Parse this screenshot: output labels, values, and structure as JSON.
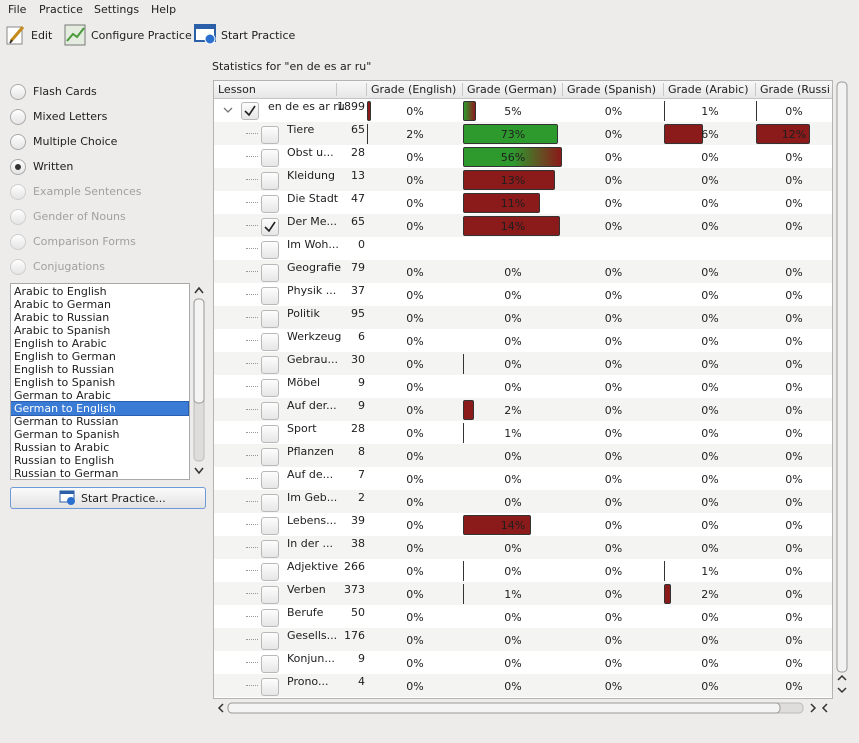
{
  "menu": [
    "File",
    "Practice",
    "Settings",
    "Help"
  ],
  "toolbar": [
    "Edit",
    "Configure Practice",
    "Start Practice"
  ],
  "modes": [
    {
      "label": "Flash Cards",
      "enabled": true,
      "selected": false
    },
    {
      "label": "Mixed Letters",
      "enabled": true,
      "selected": false
    },
    {
      "label": "Multiple Choice",
      "enabled": true,
      "selected": false
    },
    {
      "label": "Written",
      "enabled": true,
      "selected": true
    },
    {
      "label": "Example Sentences",
      "enabled": false,
      "selected": false
    },
    {
      "label": "Gender of Nouns",
      "enabled": false,
      "selected": false
    },
    {
      "label": "Comparison Forms",
      "enabled": false,
      "selected": false
    },
    {
      "label": "Conjugations",
      "enabled": false,
      "selected": false
    }
  ],
  "directions": [
    {
      "label": "Arabic to English",
      "selected": false
    },
    {
      "label": "Arabic to German",
      "selected": false
    },
    {
      "label": "Arabic to Russian",
      "selected": false
    },
    {
      "label": "Arabic to Spanish",
      "selected": false
    },
    {
      "label": "English to Arabic",
      "selected": false
    },
    {
      "label": "English to German",
      "selected": false
    },
    {
      "label": "English to Russian",
      "selected": false
    },
    {
      "label": "English to Spanish",
      "selected": false
    },
    {
      "label": "German to Arabic",
      "selected": false
    },
    {
      "label": "German to English",
      "selected": true
    },
    {
      "label": "German to Russian",
      "selected": false
    },
    {
      "label": "German to Spanish",
      "selected": false
    },
    {
      "label": "Russian to Arabic",
      "selected": false
    },
    {
      "label": "Russian to English",
      "selected": false
    },
    {
      "label": "Russian to German",
      "selected": false
    }
  ],
  "start_button": "Start Practice...",
  "stats_title": "Statistics for \"en de es ar ru\"",
  "table": {
    "headers": [
      "Lesson",
      "Grade (English)",
      "Grade (German)",
      "Grade (Spanish)",
      "Grade (Arabic)",
      "Grade (Russian)"
    ],
    "rows": [
      {
        "level": 0,
        "name": "en de es ar ru",
        "count": "1899",
        "checked": true,
        "grades": [
          "0%",
          "5%",
          "0%",
          "1%",
          "0%"
        ],
        "bars": [
          {
            "percent": 3,
            "colors": [
              "#8b1a1a"
            ]
          },
          {
            "percent": 12,
            "colors": [
              "#2e9a2e",
              "#8b1a1a"
            ]
          },
          null,
          {
            "percent": 1,
            "colors": [
              "#8b1a1a"
            ]
          },
          {
            "percent": 1,
            "colors": [
              "#8b1a1a"
            ]
          }
        ]
      },
      {
        "level": 1,
        "name": "Tiere",
        "count": "65",
        "checked": false,
        "grades": [
          "2%",
          "73%",
          "0%",
          "6%",
          "12%"
        ],
        "bars": [
          {
            "percent": 1,
            "colors": [
              "#8b1a1a"
            ]
          },
          {
            "percent": 96,
            "colors": [
              "#2e9a2e"
            ]
          },
          null,
          {
            "percent": 42,
            "colors": [
              "#8b1a1a"
            ]
          },
          {
            "percent": 72,
            "colors": [
              "#8b1a1a"
            ]
          }
        ]
      },
      {
        "level": 1,
        "name": "Obst u...",
        "count": "28",
        "checked": false,
        "grades": [
          "0%",
          "56%",
          "0%",
          "0%",
          "0%"
        ],
        "bars": [
          null,
          {
            "percent": 100,
            "colors": [
              "#2e9a2e",
              "#2e9a2e",
              "#8b1a1a"
            ]
          },
          null,
          null,
          null
        ]
      },
      {
        "level": 1,
        "name": "Kleidung",
        "count": "13",
        "checked": false,
        "grades": [
          "0%",
          "13%",
          "0%",
          "0%",
          "0%"
        ],
        "bars": [
          null,
          {
            "percent": 93,
            "colors": [
              "#8b1a1a"
            ]
          },
          null,
          null,
          null
        ]
      },
      {
        "level": 1,
        "name": "Die Stadt",
        "count": "47",
        "checked": false,
        "grades": [
          "0%",
          "11%",
          "0%",
          "0%",
          "0%"
        ],
        "bars": [
          null,
          {
            "percent": 78,
            "colors": [
              "#8b1a1a"
            ]
          },
          null,
          null,
          null
        ]
      },
      {
        "level": 1,
        "name": "Der Me...",
        "count": "65",
        "checked": true,
        "grades": [
          "0%",
          "14%",
          "0%",
          "0%",
          "0%"
        ],
        "bars": [
          null,
          {
            "percent": 98,
            "colors": [
              "#8b1a1a"
            ]
          },
          null,
          null,
          null
        ]
      },
      {
        "level": 1,
        "name": "Im Woh...",
        "count": "0",
        "checked": false,
        "grades": [
          null,
          null,
          null,
          null,
          null
        ]
      },
      {
        "level": 1,
        "name": "Geografie",
        "count": "79",
        "checked": false,
        "grades": [
          "0%",
          "0%",
          "0%",
          "0%",
          "0%"
        ]
      },
      {
        "level": 1,
        "name": "Physik ...",
        "count": "37",
        "checked": false,
        "grades": [
          "0%",
          "0%",
          "0%",
          "0%",
          "0%"
        ]
      },
      {
        "level": 1,
        "name": "Politik",
        "count": "95",
        "checked": false,
        "grades": [
          "0%",
          "0%",
          "0%",
          "0%",
          "0%"
        ]
      },
      {
        "level": 1,
        "name": "Werkzeug",
        "count": "6",
        "checked": false,
        "grades": [
          "0%",
          "0%",
          "0%",
          "0%",
          "0%"
        ]
      },
      {
        "level": 1,
        "name": "Gebrau...",
        "count": "30",
        "checked": false,
        "grades": [
          "0%",
          "0%",
          "0%",
          "0%",
          "0%"
        ],
        "bars": [
          null,
          {
            "percent": 1,
            "colors": [
              "#8b1a1a"
            ]
          },
          null,
          null,
          null
        ]
      },
      {
        "level": 1,
        "name": "Möbel",
        "count": "9",
        "checked": false,
        "grades": [
          "0%",
          "0%",
          "0%",
          "0%",
          "0%"
        ]
      },
      {
        "level": 1,
        "name": "Auf der...",
        "count": "9",
        "checked": false,
        "grades": [
          "0%",
          "2%",
          "0%",
          "0%",
          "0%"
        ],
        "bars": [
          null,
          {
            "percent": 10,
            "colors": [
              "#8b1a1a"
            ]
          },
          null,
          null,
          null
        ]
      },
      {
        "level": 1,
        "name": "Sport",
        "count": "28",
        "checked": false,
        "grades": [
          "0%",
          "1%",
          "0%",
          "0%",
          "0%"
        ],
        "bars": [
          null,
          {
            "percent": 1,
            "colors": [
              "#8b1a1a"
            ]
          },
          null,
          null,
          null
        ]
      },
      {
        "level": 1,
        "name": "Pflanzen",
        "count": "8",
        "checked": false,
        "grades": [
          "0%",
          "0%",
          "0%",
          "0%",
          "0%"
        ]
      },
      {
        "level": 1,
        "name": "Auf de...",
        "count": "7",
        "checked": false,
        "grades": [
          "0%",
          "0%",
          "0%",
          "0%",
          "0%"
        ]
      },
      {
        "level": 1,
        "name": "Im Geb...",
        "count": "2",
        "checked": false,
        "grades": [
          "0%",
          "0%",
          "0%",
          "0%",
          "0%"
        ]
      },
      {
        "level": 1,
        "name": "Lebens...",
        "count": "39",
        "checked": false,
        "grades": [
          "0%",
          "14%",
          "0%",
          "0%",
          "0%"
        ],
        "bars": [
          null,
          {
            "percent": 68,
            "colors": [
              "#8b1a1a"
            ]
          },
          null,
          null,
          null
        ]
      },
      {
        "level": 1,
        "name": "In der ...",
        "count": "38",
        "checked": false,
        "grades": [
          "0%",
          "0%",
          "0%",
          "0%",
          "0%"
        ]
      },
      {
        "level": 1,
        "name": "Adjektive",
        "count": "266",
        "checked": false,
        "grades": [
          "0%",
          "0%",
          "0%",
          "1%",
          "0%"
        ],
        "bars": [
          null,
          {
            "percent": 1,
            "colors": [
              "#8b1a1a"
            ]
          },
          null,
          {
            "percent": 1,
            "colors": [
              "#8b1a1a"
            ]
          },
          null
        ]
      },
      {
        "level": 1,
        "name": "Verben",
        "count": "373",
        "checked": false,
        "grades": [
          "0%",
          "1%",
          "0%",
          "2%",
          "0%"
        ],
        "bars": [
          null,
          {
            "percent": 1,
            "colors": [
              "#8b1a1a"
            ]
          },
          null,
          {
            "percent": 7,
            "colors": [
              "#8b1a1a"
            ]
          },
          null
        ]
      },
      {
        "level": 1,
        "name": "Berufe",
        "count": "50",
        "checked": false,
        "grades": [
          "0%",
          "0%",
          "0%",
          "0%",
          "0%"
        ]
      },
      {
        "level": 1,
        "name": "Gesells...",
        "count": "176",
        "checked": false,
        "grades": [
          "0%",
          "0%",
          "0%",
          "0%",
          "0%"
        ]
      },
      {
        "level": 1,
        "name": "Konjun...",
        "count": "9",
        "checked": false,
        "grades": [
          "0%",
          "0%",
          "0%",
          "0%",
          "0%"
        ]
      },
      {
        "level": 1,
        "name": "Prono...",
        "count": "4",
        "checked": false,
        "grades": [
          "0%",
          "0%",
          "0%",
          "0%",
          "0%"
        ]
      }
    ]
  }
}
